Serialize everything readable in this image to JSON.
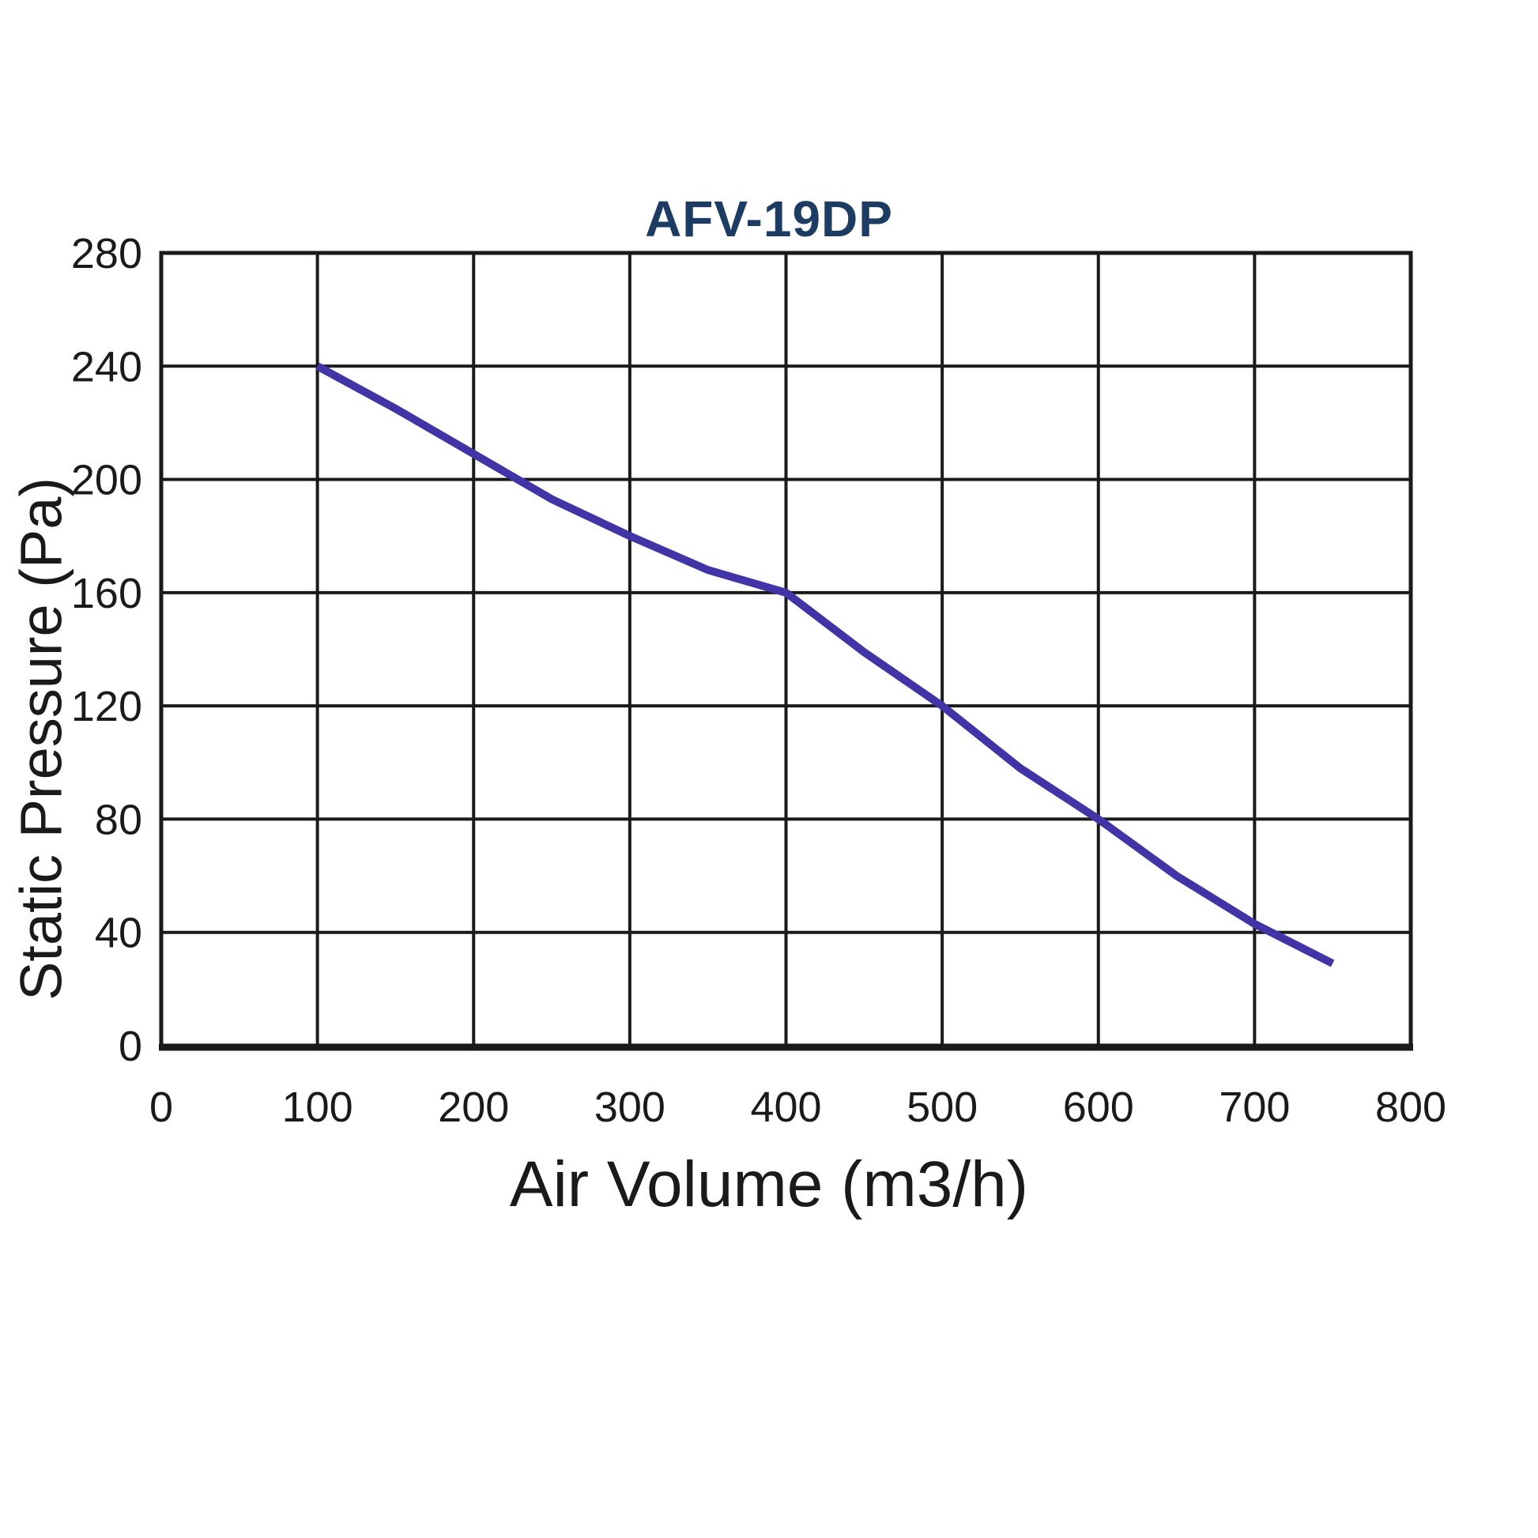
{
  "figure": {
    "background": "#ffffff"
  },
  "chart_data": {
    "type": "line",
    "title": "AFV-19DP",
    "xlabel": "Air Volume (m3/h)",
    "ylabel": "Static Pressure (Pa)",
    "xlim": [
      0,
      800
    ],
    "ylim": [
      0,
      280
    ],
    "x_ticks": [
      0,
      100,
      200,
      300,
      400,
      500,
      600,
      700,
      800
    ],
    "y_ticks": [
      280,
      240,
      200,
      160,
      120,
      80,
      40,
      0
    ],
    "grid": "on",
    "legend_position": "none",
    "colors": {
      "line": "#4134a6",
      "grid": "#1a1a1a",
      "border": "#1a1a1a",
      "text": "#1a1a1a",
      "title": "#1c3c63"
    },
    "series": [
      {
        "name": "AFV-19DP",
        "points": [
          [
            100,
            240
          ],
          [
            150,
            225
          ],
          [
            200,
            209
          ],
          [
            250,
            193
          ],
          [
            300,
            180
          ],
          [
            350,
            168
          ],
          [
            400,
            160
          ],
          [
            450,
            139
          ],
          [
            500,
            120
          ],
          [
            550,
            98
          ],
          [
            600,
            80
          ],
          [
            650,
            60
          ],
          [
            700,
            43
          ],
          [
            750,
            29
          ]
        ]
      }
    ]
  }
}
